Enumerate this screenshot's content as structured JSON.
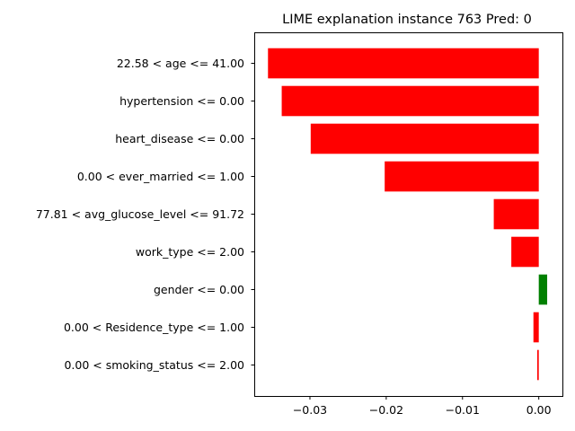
{
  "chart_data": {
    "type": "bar",
    "orientation": "horizontal",
    "title": "LIME explanation instance 763 Pred: 0",
    "xlabel": "",
    "ylabel": "",
    "categories": [
      "22.58 < age <= 41.00",
      "hypertension <= 0.00",
      "heart_disease <= 0.00",
      "0.00 < ever_married <= 1.00",
      "77.81 < avg_glucose_level <= 91.72",
      "work_type <= 2.00",
      "gender <= 0.00",
      "0.00 < Residence_type <= 1.00",
      "0.00 < smoking_status <= 2.00"
    ],
    "values": [
      -0.0355,
      -0.0337,
      -0.0299,
      -0.0202,
      -0.0059,
      -0.0036,
      0.0011,
      -0.0007,
      -0.0002
    ],
    "xlim": [
      -0.0373,
      0.0031
    ],
    "xticks": [
      -0.03,
      -0.02,
      -0.01,
      0.0
    ],
    "xtick_labels": [
      "−0.03",
      "−0.02",
      "−0.01",
      "0.00"
    ],
    "colors": {
      "negative": "#ff0000",
      "positive": "#008000"
    },
    "grid": false,
    "legend": "none"
  }
}
